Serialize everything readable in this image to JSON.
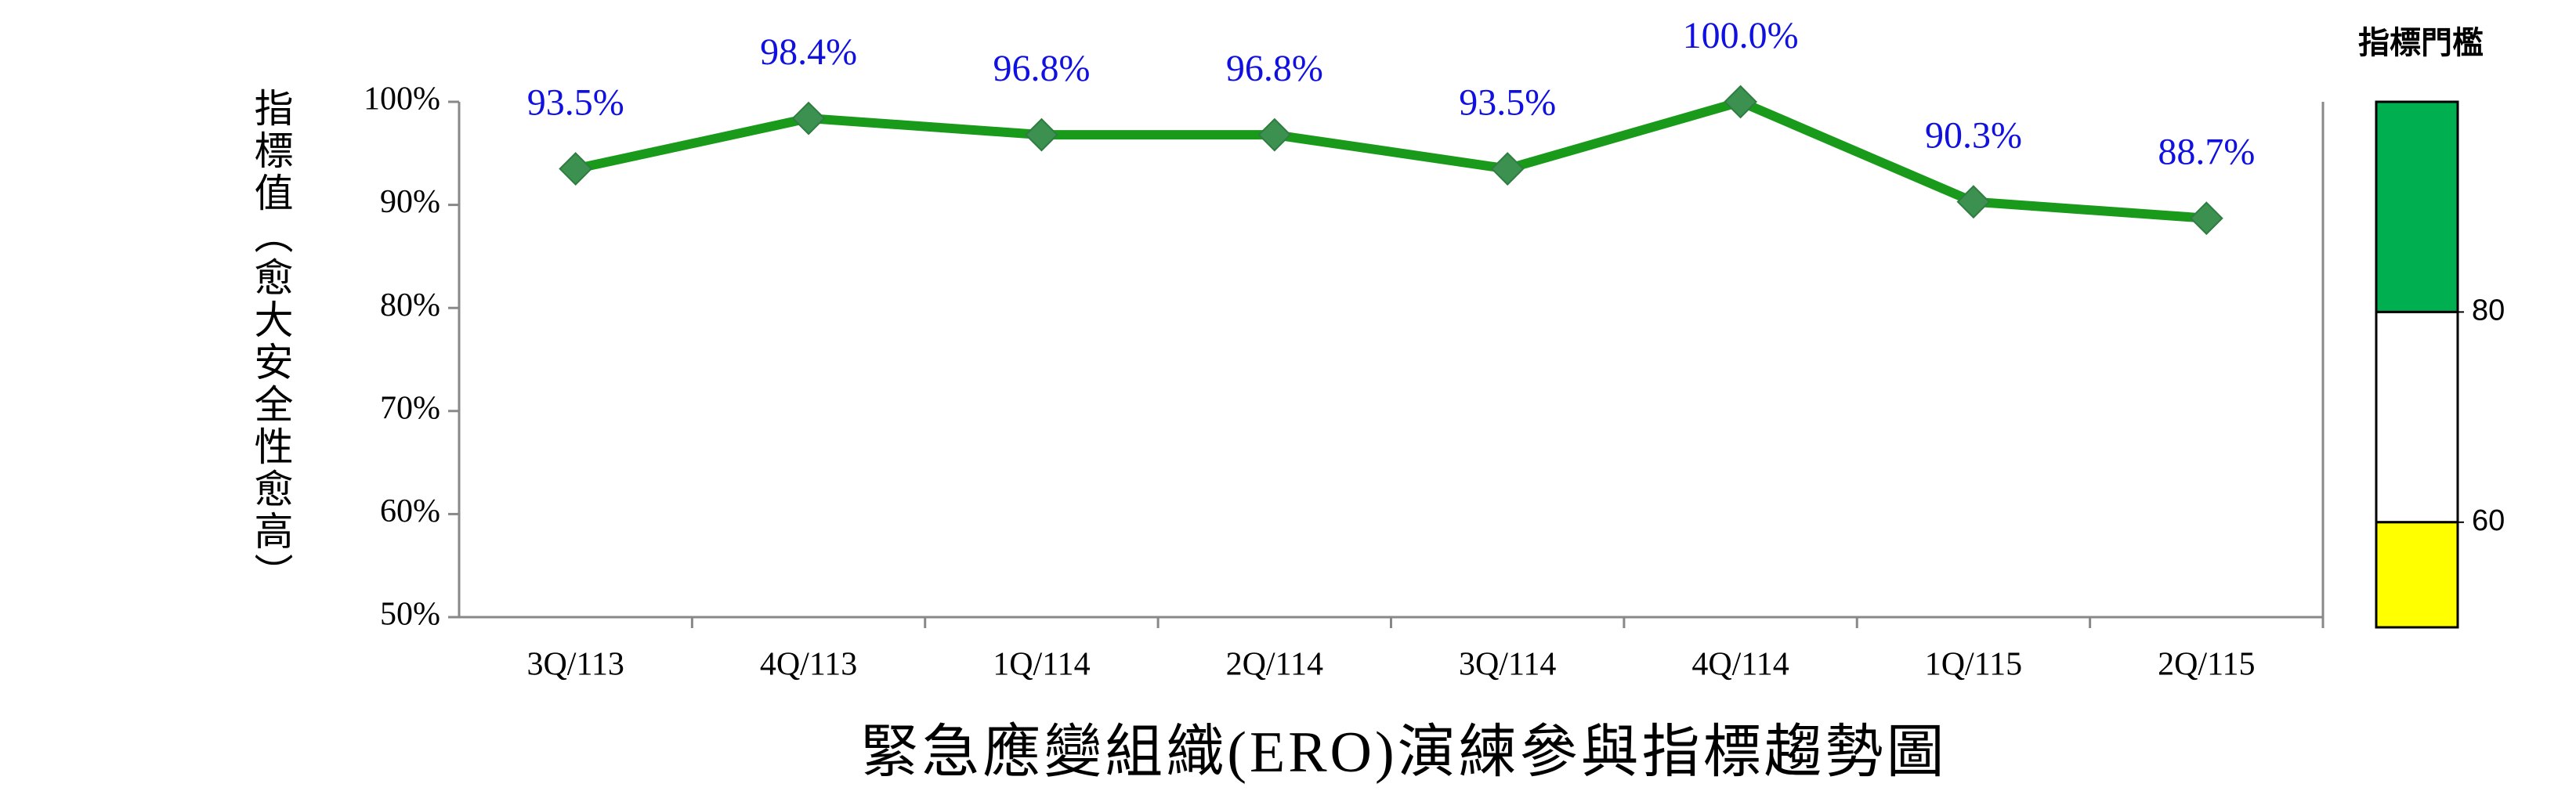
{
  "chart_data": {
    "type": "line",
    "title": "緊急應變組織(ERO)演練參與指標趨勢圖",
    "y_label": "指標值（愈大安全性愈高）",
    "categories": [
      "3Q/113",
      "4Q/113",
      "1Q/114",
      "2Q/114",
      "3Q/114",
      "4Q/114",
      "1Q/115",
      "2Q/115"
    ],
    "series": [
      {
        "color": "#1a9a1a",
        "marker_color": "#3c9150",
        "values": [
          93.5,
          98.4,
          96.8,
          96.8,
          93.5,
          100.0,
          90.3,
          88.7
        ],
        "value_labels": [
          "93.5%",
          "98.4%",
          "96.8%",
          "96.8%",
          "93.5%",
          "100.0%",
          "90.3%",
          "88.7%"
        ]
      }
    ],
    "ylim": [
      50,
      100
    ],
    "yticks": [
      {
        "value": 50,
        "label": "50%"
      },
      {
        "value": 60,
        "label": "60%"
      },
      {
        "value": 70,
        "label": "70%"
      },
      {
        "value": 80,
        "label": "80%"
      },
      {
        "value": 90,
        "label": "90%"
      },
      {
        "value": 100,
        "label": "100%"
      }
    ],
    "threshold": {
      "title": "指標門檻",
      "ylim": [
        50,
        100
      ],
      "yticks": [
        60,
        80
      ],
      "zones": [
        {
          "from": 80,
          "to": 100,
          "color": "#00b050"
        },
        {
          "from": 60,
          "to": 80,
          "color": "#ffffff"
        },
        {
          "from": 50,
          "to": 60,
          "color": "#ffff00"
        }
      ]
    }
  }
}
